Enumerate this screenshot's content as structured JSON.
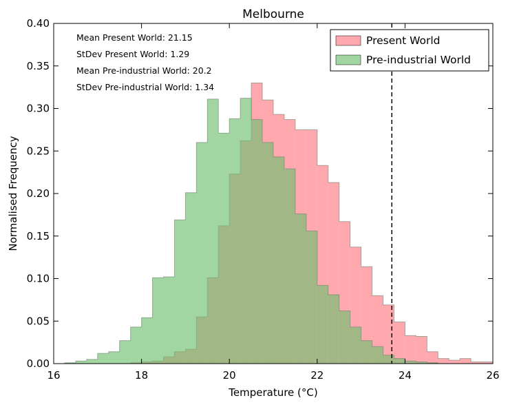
{
  "chart_data": {
    "type": "histogram",
    "title": "Melbourne",
    "xlabel": "Temperature (°C)",
    "ylabel": "Normalised Frequency",
    "xlim": [
      16,
      26
    ],
    "ylim": [
      0,
      0.4
    ],
    "xticks": [
      16,
      18,
      20,
      22,
      24,
      26
    ],
    "yticks": [
      0.0,
      0.05,
      0.1,
      0.15,
      0.2,
      0.25,
      0.3,
      0.35,
      0.4
    ],
    "grid": false,
    "legend_position": "top-right",
    "bin_edges": [
      16.25,
      16.5,
      16.75,
      17.0,
      17.25,
      17.5,
      17.75,
      18.0,
      18.25,
      18.5,
      18.75,
      19.0,
      19.25,
      19.5,
      19.75,
      20.0,
      20.25,
      20.5,
      20.75,
      21.0,
      21.25,
      21.5,
      21.75,
      22.0,
      22.25,
      22.5,
      22.75,
      23.0,
      23.25,
      23.5,
      23.75,
      24.0,
      24.25,
      24.5,
      24.75,
      25.0,
      25.25,
      25.5,
      25.75,
      26.0
    ],
    "series": [
      {
        "name": "Present World",
        "color": "#ff8c94",
        "opacity": 0.75,
        "values": [
          0.0,
          0.0,
          0.0,
          0.0,
          0.0,
          0.0,
          0.001,
          0.002,
          0.003,
          0.008,
          0.014,
          0.017,
          0.055,
          0.101,
          0.162,
          0.223,
          0.262,
          0.33,
          0.31,
          0.293,
          0.287,
          0.275,
          0.275,
          0.233,
          0.213,
          0.167,
          0.137,
          0.114,
          0.08,
          0.069,
          0.049,
          0.033,
          0.032,
          0.014,
          0.006,
          0.004,
          0.006,
          0.002,
          0.002
        ]
      },
      {
        "name": "Pre-industrial World",
        "color": "#6fbf6f",
        "opacity": 0.65,
        "values": [
          0.001,
          0.003,
          0.005,
          0.012,
          0.014,
          0.027,
          0.043,
          0.054,
          0.101,
          0.102,
          0.169,
          0.201,
          0.26,
          0.311,
          0.271,
          0.288,
          0.312,
          0.287,
          0.26,
          0.243,
          0.229,
          0.176,
          0.156,
          0.092,
          0.081,
          0.062,
          0.043,
          0.027,
          0.02,
          0.01,
          0.006,
          0.003,
          0.002,
          0.001,
          0.0,
          0.0,
          0.0,
          0.0,
          0.0
        ]
      }
    ],
    "reference_line": {
      "x": 23.7,
      "style": "dashed",
      "color": "#000000"
    },
    "annotations": [
      "Mean Present World: 21.15",
      "StDev Present World: 1.29",
      "Mean Pre-industrial World: 20.2",
      "StDev Pre-industrial World: 1.34"
    ],
    "legend": [
      "Present World",
      "Pre-industrial World"
    ]
  }
}
